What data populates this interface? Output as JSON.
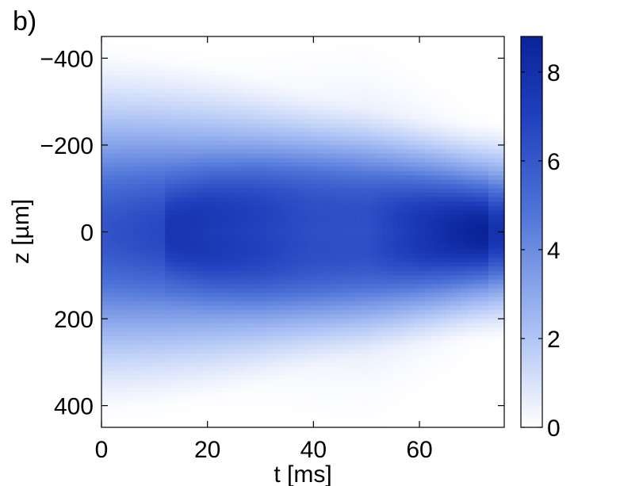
{
  "panel_label": "b)",
  "colors": {
    "low": "#ffffff",
    "high": "#0a2399",
    "axis": "#000000"
  },
  "chart_data": {
    "type": "heatmap",
    "title": "",
    "xlabel": "t [ms]",
    "ylabel": "z [µm]",
    "xlim": [
      0,
      76
    ],
    "ylim": [
      -450,
      450
    ],
    "y_reversed": true,
    "x_ticks": [
      0,
      20,
      40,
      60
    ],
    "x_tick_labels": [
      "0",
      "20",
      "40",
      "60"
    ],
    "y_ticks": [
      -400,
      -200,
      0,
      200,
      400
    ],
    "y_tick_labels": [
      "−400",
      "−200",
      "0",
      "200",
      "400"
    ],
    "colorbar": {
      "range": [
        0,
        8.8
      ],
      "ticks": [
        0,
        2,
        4,
        6,
        8
      ],
      "tick_labels": [
        "0",
        "2",
        "4",
        "6",
        "8"
      ]
    },
    "grid": false,
    "legend": "none",
    "description_model": {
      "t": [
        0,
        10,
        20,
        30,
        40,
        50,
        60,
        70,
        76
      ],
      "core_peak": [
        6.8,
        7.4,
        7.6,
        7.4,
        6.9,
        6.7,
        7.6,
        8.6,
        8.8
      ],
      "core_halfwidth": [
        150,
        140,
        135,
        135,
        140,
        145,
        120,
        90,
        80
      ],
      "halo_halfwidth": [
        420,
        410,
        390,
        360,
        320,
        285,
        265,
        255,
        250
      ],
      "branch_peak_z": [
        0,
        0,
        70,
        100,
        110,
        95,
        55,
        20,
        10
      ]
    }
  }
}
